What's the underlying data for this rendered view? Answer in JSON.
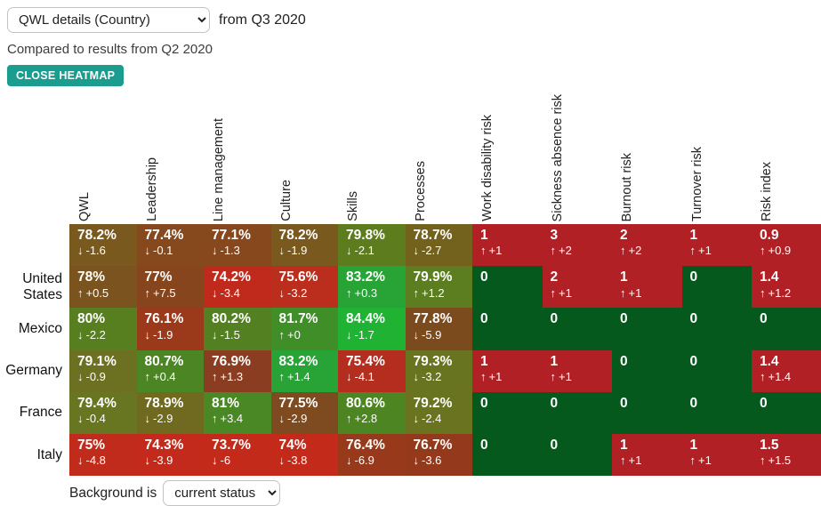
{
  "header": {
    "view_select_value": "QWL details (Country)",
    "from_label": "from Q3 2020",
    "compare_label": "Compared to results from Q2 2020",
    "close_button_label": "CLOSE HEATMAP"
  },
  "footer": {
    "background_label": "Background is",
    "background_select_value": "current status"
  },
  "icons": {
    "up": "↑",
    "down": "↓"
  },
  "colors": {
    "accent_teal": "#1a9c8e",
    "risk_red": "#b02025",
    "risk_green": "#06591d",
    "good_green": "#1fb233",
    "bad_red": "#c42a1a"
  },
  "chart_data": {
    "type": "heatmap",
    "title": "QWL details (Country) from Q3 2020 compared to Q2 2020",
    "columns": [
      "QWL",
      "Leadership",
      "Line management",
      "Culture",
      "Skills",
      "Processes",
      "Work disability risk",
      "Sickness absence risk",
      "Burnout risk",
      "Turnover risk",
      "Risk index"
    ],
    "rows": [
      {
        "label": "",
        "cells": [
          {
            "value": "78.2%",
            "delta": "-1.6",
            "direction": "down",
            "bg": "#7a591e"
          },
          {
            "value": "77.4%",
            "delta": "-0.1",
            "direction": "down",
            "bg": "#85491d"
          },
          {
            "value": "77.1%",
            "delta": "-1.3",
            "direction": "down",
            "bg": "#87481e"
          },
          {
            "value": "78.2%",
            "delta": "-1.9",
            "direction": "down",
            "bg": "#7a591e"
          },
          {
            "value": "79.8%",
            "delta": "-2.1",
            "direction": "down",
            "bg": "#5d7c1e"
          },
          {
            "value": "78.7%",
            "delta": "-2.7",
            "direction": "down",
            "bg": "#73621e"
          },
          {
            "value": "1",
            "delta": "+1",
            "direction": "up",
            "bg": "#b02025"
          },
          {
            "value": "3",
            "delta": "+2",
            "direction": "up",
            "bg": "#b02025"
          },
          {
            "value": "2",
            "delta": "+2",
            "direction": "up",
            "bg": "#b02025"
          },
          {
            "value": "1",
            "delta": "+1",
            "direction": "up",
            "bg": "#b02025"
          },
          {
            "value": "0.9",
            "delta": "+0.9",
            "direction": "up",
            "bg": "#b02025"
          }
        ]
      },
      {
        "label": "United States",
        "cells": [
          {
            "value": "78%",
            "delta": "+0.5",
            "direction": "up",
            "bg": "#7b531e"
          },
          {
            "value": "77%",
            "delta": "+7.5",
            "direction": "up",
            "bg": "#86451d"
          },
          {
            "value": "74.2%",
            "delta": "-3.4",
            "direction": "down",
            "bg": "#c02a1c"
          },
          {
            "value": "75.6%",
            "delta": "-3.2",
            "direction": "down",
            "bg": "#bb2d1d"
          },
          {
            "value": "83.2%",
            "delta": "+0.3",
            "direction": "up",
            "bg": "#28a437"
          },
          {
            "value": "79.9%",
            "delta": "+1.2",
            "direction": "up",
            "bg": "#5c7d20"
          },
          {
            "value": "0",
            "delta": null,
            "direction": null,
            "bg": "#06591d"
          },
          {
            "value": "2",
            "delta": "+1",
            "direction": "up",
            "bg": "#b02025"
          },
          {
            "value": "1",
            "delta": "+1",
            "direction": "up",
            "bg": "#b02025"
          },
          {
            "value": "0",
            "delta": null,
            "direction": null,
            "bg": "#06591d"
          },
          {
            "value": "1.4",
            "delta": "+1.2",
            "direction": "up",
            "bg": "#b02025"
          }
        ]
      },
      {
        "label": "Mexico",
        "cells": [
          {
            "value": "80%",
            "delta": "-2.2",
            "direction": "down",
            "bg": "#577f20"
          },
          {
            "value": "76.1%",
            "delta": "-1.9",
            "direction": "down",
            "bg": "#9b3a1b"
          },
          {
            "value": "80.2%",
            "delta": "-1.5",
            "direction": "down",
            "bg": "#538121"
          },
          {
            "value": "81.7%",
            "delta": "+0",
            "direction": "up",
            "bg": "#3f8e28"
          },
          {
            "value": "84.4%",
            "delta": "-1.7",
            "direction": "down",
            "bg": "#1fb233"
          },
          {
            "value": "77.8%",
            "delta": "-5.9",
            "direction": "down",
            "bg": "#7c4b1d"
          },
          {
            "value": "0",
            "delta": null,
            "direction": null,
            "bg": "#06591d"
          },
          {
            "value": "0",
            "delta": null,
            "direction": null,
            "bg": "#06591d"
          },
          {
            "value": "0",
            "delta": null,
            "direction": null,
            "bg": "#06591d"
          },
          {
            "value": "0",
            "delta": null,
            "direction": null,
            "bg": "#06591d"
          },
          {
            "value": "0",
            "delta": null,
            "direction": null,
            "bg": "#06591d"
          }
        ]
      },
      {
        "label": "Germany",
        "cells": [
          {
            "value": "79.1%",
            "delta": "-0.9",
            "direction": "down",
            "bg": "#6c7021"
          },
          {
            "value": "80.7%",
            "delta": "+0.4",
            "direction": "up",
            "bg": "#4c8624"
          },
          {
            "value": "76.9%",
            "delta": "+1.3",
            "direction": "up",
            "bg": "#8a3d20"
          },
          {
            "value": "83.2%",
            "delta": "+1.4",
            "direction": "up",
            "bg": "#28a437"
          },
          {
            "value": "75.4%",
            "delta": "-4.1",
            "direction": "down",
            "bg": "#b42d1e"
          },
          {
            "value": "79.3%",
            "delta": "-3.2",
            "direction": "down",
            "bg": "#68741f"
          },
          {
            "value": "1",
            "delta": "+1",
            "direction": "up",
            "bg": "#b02025"
          },
          {
            "value": "1",
            "delta": "+1",
            "direction": "up",
            "bg": "#b02025"
          },
          {
            "value": "0",
            "delta": null,
            "direction": null,
            "bg": "#06591d"
          },
          {
            "value": "0",
            "delta": null,
            "direction": null,
            "bg": "#06591d"
          },
          {
            "value": "1.4",
            "delta": "+1.4",
            "direction": "up",
            "bg": "#b02025"
          }
        ]
      },
      {
        "label": "France",
        "cells": [
          {
            "value": "79.4%",
            "delta": "-0.4",
            "direction": "down",
            "bg": "#687521"
          },
          {
            "value": "78.9%",
            "delta": "-2.9",
            "direction": "down",
            "bg": "#6f6a20"
          },
          {
            "value": "81%",
            "delta": "+3.4",
            "direction": "up",
            "bg": "#4a8725"
          },
          {
            "value": "77.5%",
            "delta": "-2.9",
            "direction": "down",
            "bg": "#7e4a1f"
          },
          {
            "value": "80.6%",
            "delta": "+2.8",
            "direction": "up",
            "bg": "#4d8523"
          },
          {
            "value": "79.2%",
            "delta": "-2.4",
            "direction": "down",
            "bg": "#697320"
          },
          {
            "value": "0",
            "delta": null,
            "direction": null,
            "bg": "#06591d"
          },
          {
            "value": "0",
            "delta": null,
            "direction": null,
            "bg": "#06591d"
          },
          {
            "value": "0",
            "delta": null,
            "direction": null,
            "bg": "#06591d"
          },
          {
            "value": "0",
            "delta": null,
            "direction": null,
            "bg": "#06591d"
          },
          {
            "value": "0",
            "delta": null,
            "direction": null,
            "bg": "#06591d"
          }
        ]
      },
      {
        "label": "Italy",
        "cells": [
          {
            "value": "75%",
            "delta": "-4.8",
            "direction": "down",
            "bg": "#c02b1c"
          },
          {
            "value": "74.3%",
            "delta": "-3.9",
            "direction": "down",
            "bg": "#c32a1b"
          },
          {
            "value": "73.7%",
            "delta": "-6",
            "direction": "down",
            "bg": "#c42a1a"
          },
          {
            "value": "74%",
            "delta": "-3.8",
            "direction": "down",
            "bg": "#c42a1a"
          },
          {
            "value": "76.4%",
            "delta": "-6.9",
            "direction": "down",
            "bg": "#97391a"
          },
          {
            "value": "76.7%",
            "delta": "-3.6",
            "direction": "down",
            "bg": "#94391b"
          },
          {
            "value": "0",
            "delta": null,
            "direction": null,
            "bg": "#06591d"
          },
          {
            "value": "0",
            "delta": null,
            "direction": null,
            "bg": "#06591d"
          },
          {
            "value": "1",
            "delta": "+1",
            "direction": "up",
            "bg": "#b02025"
          },
          {
            "value": "1",
            "delta": "+1",
            "direction": "up",
            "bg": "#b02025"
          },
          {
            "value": "1.5",
            "delta": "+1.5",
            "direction": "up",
            "bg": "#b02025"
          }
        ]
      }
    ]
  }
}
